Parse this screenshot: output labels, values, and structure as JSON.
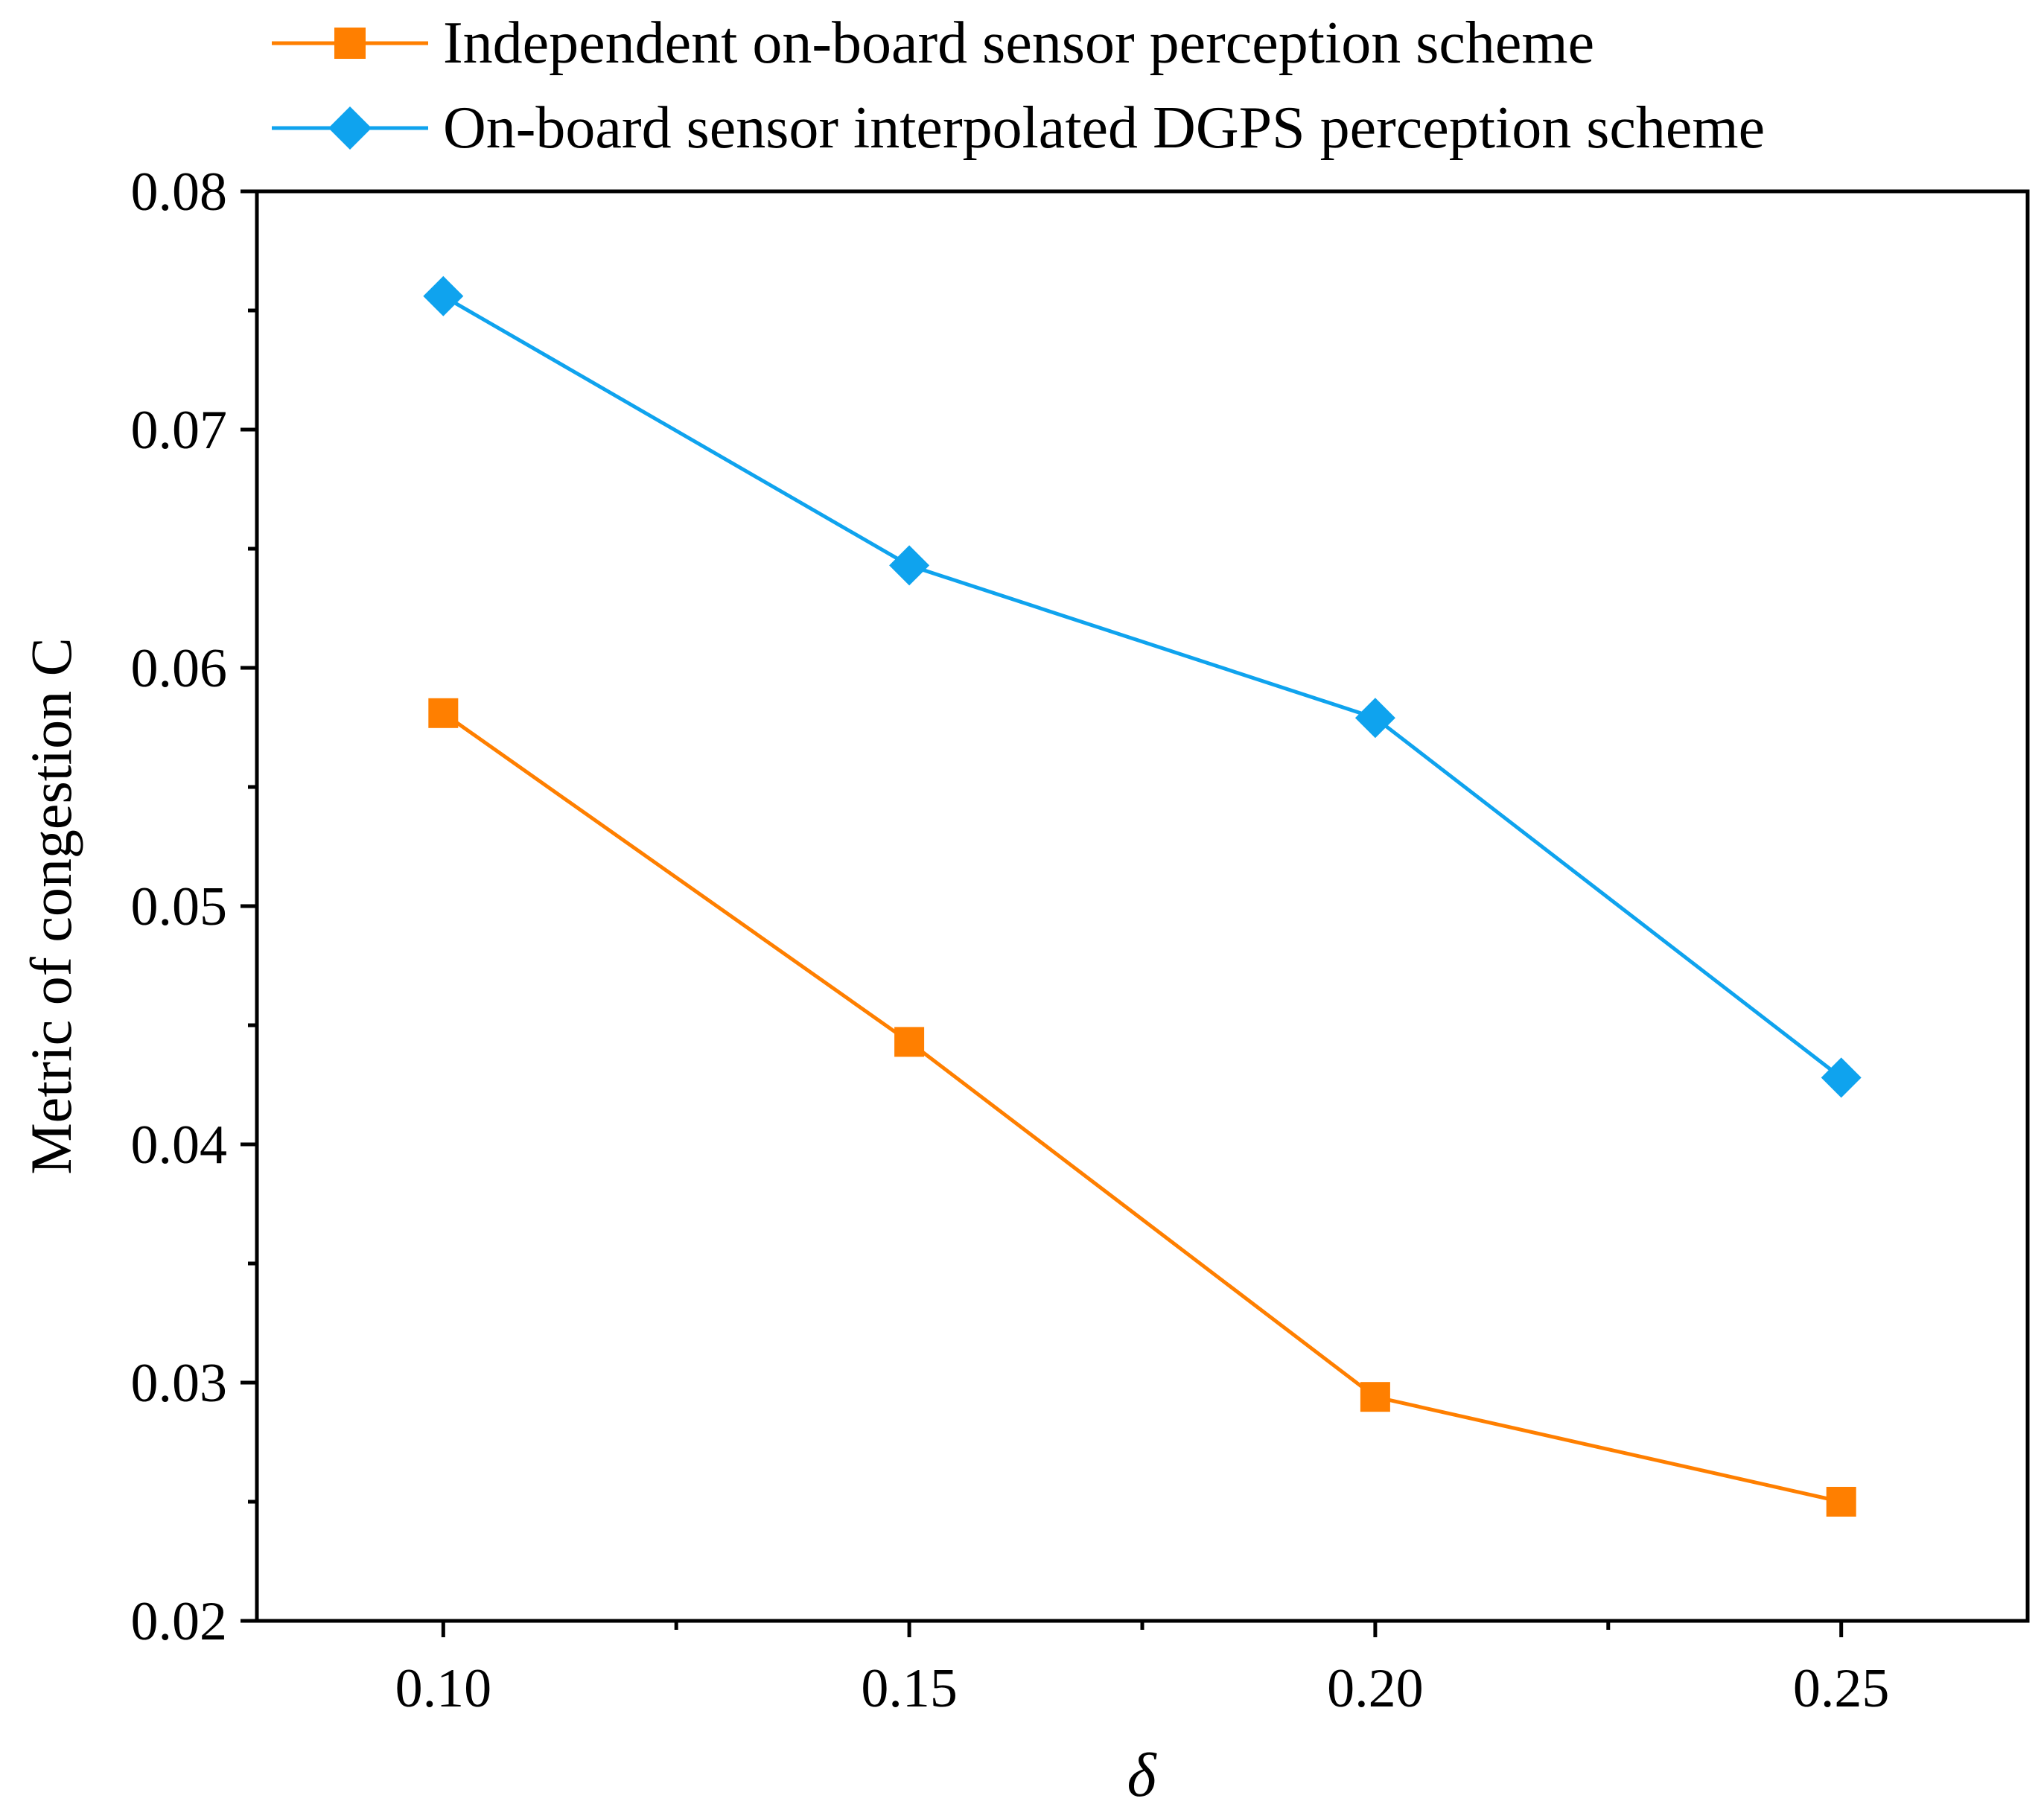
{
  "chart_data": {
    "type": "line",
    "title": "",
    "xlabel": "δ",
    "ylabel": "Metric of congestion C",
    "x": [
      0.1,
      0.15,
      0.2,
      0.25
    ],
    "xticks": [
      "0.10",
      "0.15",
      "0.20",
      "0.25"
    ],
    "yticks": [
      "0.02",
      "0.03",
      "0.04",
      "0.05",
      "0.06",
      "0.07",
      "0.08"
    ],
    "xlim": [
      0.08,
      0.27
    ],
    "ylim": [
      0.02,
      0.08
    ],
    "grid": false,
    "legend_position": "top",
    "series": [
      {
        "name": "Independent on-board sensor perception scheme",
        "marker": "square",
        "color": "#FF7F00",
        "values": [
          0.0581,
          0.0443,
          0.0294,
          0.025
        ]
      },
      {
        "name": "On-board sensor interpolated DGPS perception scheme",
        "marker": "diamond",
        "color": "#0FA3EE",
        "values": [
          0.0756,
          0.0643,
          0.0579,
          0.0428
        ]
      }
    ]
  }
}
